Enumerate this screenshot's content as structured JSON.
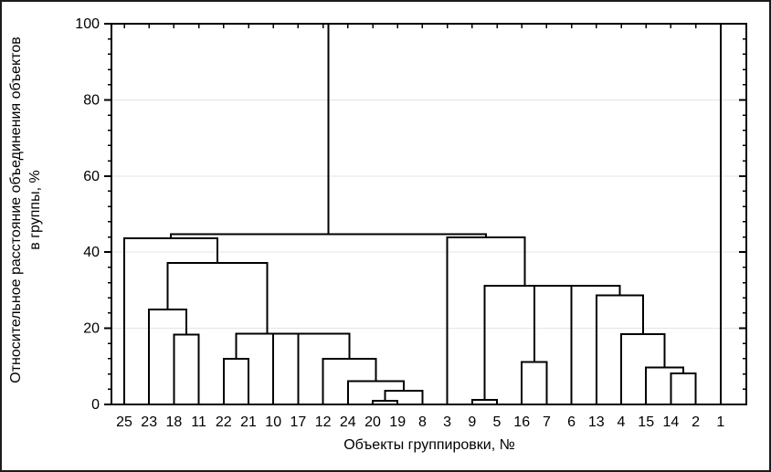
{
  "chart_data": {
    "type": "dendrogram",
    "title": "",
    "xlabel": "Объекты группировки, №",
    "ylabel_line1": "Относительное расстояние объединения объектов",
    "ylabel_line2": "в группы, %",
    "ylim": [
      0,
      100
    ],
    "y_major_ticks": [
      0,
      20,
      40,
      60,
      80,
      100
    ],
    "y_minor_step": 4,
    "grid": "horizontal at 20,40,60,80, light gray",
    "legend": "none",
    "colors": {
      "line": "#000000",
      "grid": "#e4e4e4",
      "background": "#ffffff",
      "frame": "#000000"
    },
    "leaves": [
      "25",
      "23",
      "18",
      "11",
      "22",
      "21",
      "10",
      "17",
      "12",
      "24",
      "20",
      "19",
      "8",
      "3",
      "9",
      "5",
      "16",
      "7",
      "6",
      "13",
      "4",
      "15",
      "14",
      "2",
      "1"
    ],
    "linkage_note": "each merge: a,b = child node (leaf label or merge id), h = join distance in % of max",
    "linkage": [
      {
        "id": "m0",
        "a": "9",
        "b": "5",
        "h": 1.2
      },
      {
        "id": "m1",
        "a": "20",
        "b": "19",
        "h": 0.9
      },
      {
        "id": "m2",
        "a": "m1",
        "b": "8",
        "h": 3.6
      },
      {
        "id": "m3",
        "a": "24",
        "b": "m2",
        "h": 6.1
      },
      {
        "id": "m4",
        "a": "14",
        "b": "2",
        "h": 8.2
      },
      {
        "id": "m5",
        "a": "15",
        "b": "m4",
        "h": 9.7
      },
      {
        "id": "m6",
        "a": "16",
        "b": "7",
        "h": 11.2
      },
      {
        "id": "m7",
        "a": "22",
        "b": "21",
        "h": 12.0
      },
      {
        "id": "m8",
        "a": "12",
        "b": "m3",
        "h": 12.0
      },
      {
        "id": "m9",
        "a": "18",
        "b": "11",
        "h": 18.4
      },
      {
        "id": "m10",
        "a": "4",
        "b": "m5",
        "h": 18.5
      },
      {
        "id": "m11",
        "a": "17",
        "b": "m8",
        "h": 18.6
      },
      {
        "id": "m12",
        "a": "10",
        "b": "m11",
        "h": 18.6
      },
      {
        "id": "m13",
        "a": "m7",
        "b": "m12",
        "h": 18.6
      },
      {
        "id": "m14",
        "a": "23",
        "b": "m9",
        "h": 24.9
      },
      {
        "id": "m15",
        "a": "13",
        "b": "m10",
        "h": 28.6
      },
      {
        "id": "m16",
        "a": "6",
        "b": "m15",
        "h": 31.2
      },
      {
        "id": "m17",
        "a": "m6",
        "b": "m16",
        "h": 31.2
      },
      {
        "id": "m18",
        "a": "m0",
        "b": "m17",
        "h": 31.2
      },
      {
        "id": "m19",
        "a": "m14",
        "b": "m13",
        "h": 37.2
      },
      {
        "id": "m20",
        "a": "25",
        "b": "m19",
        "h": 43.6
      },
      {
        "id": "m21",
        "a": "3",
        "b": "m18",
        "h": 43.9
      },
      {
        "id": "m22",
        "a": "m20",
        "b": "m21",
        "h": 44.7
      },
      {
        "id": "m23",
        "a": "m22",
        "b": "1",
        "h": 100
      }
    ]
  }
}
